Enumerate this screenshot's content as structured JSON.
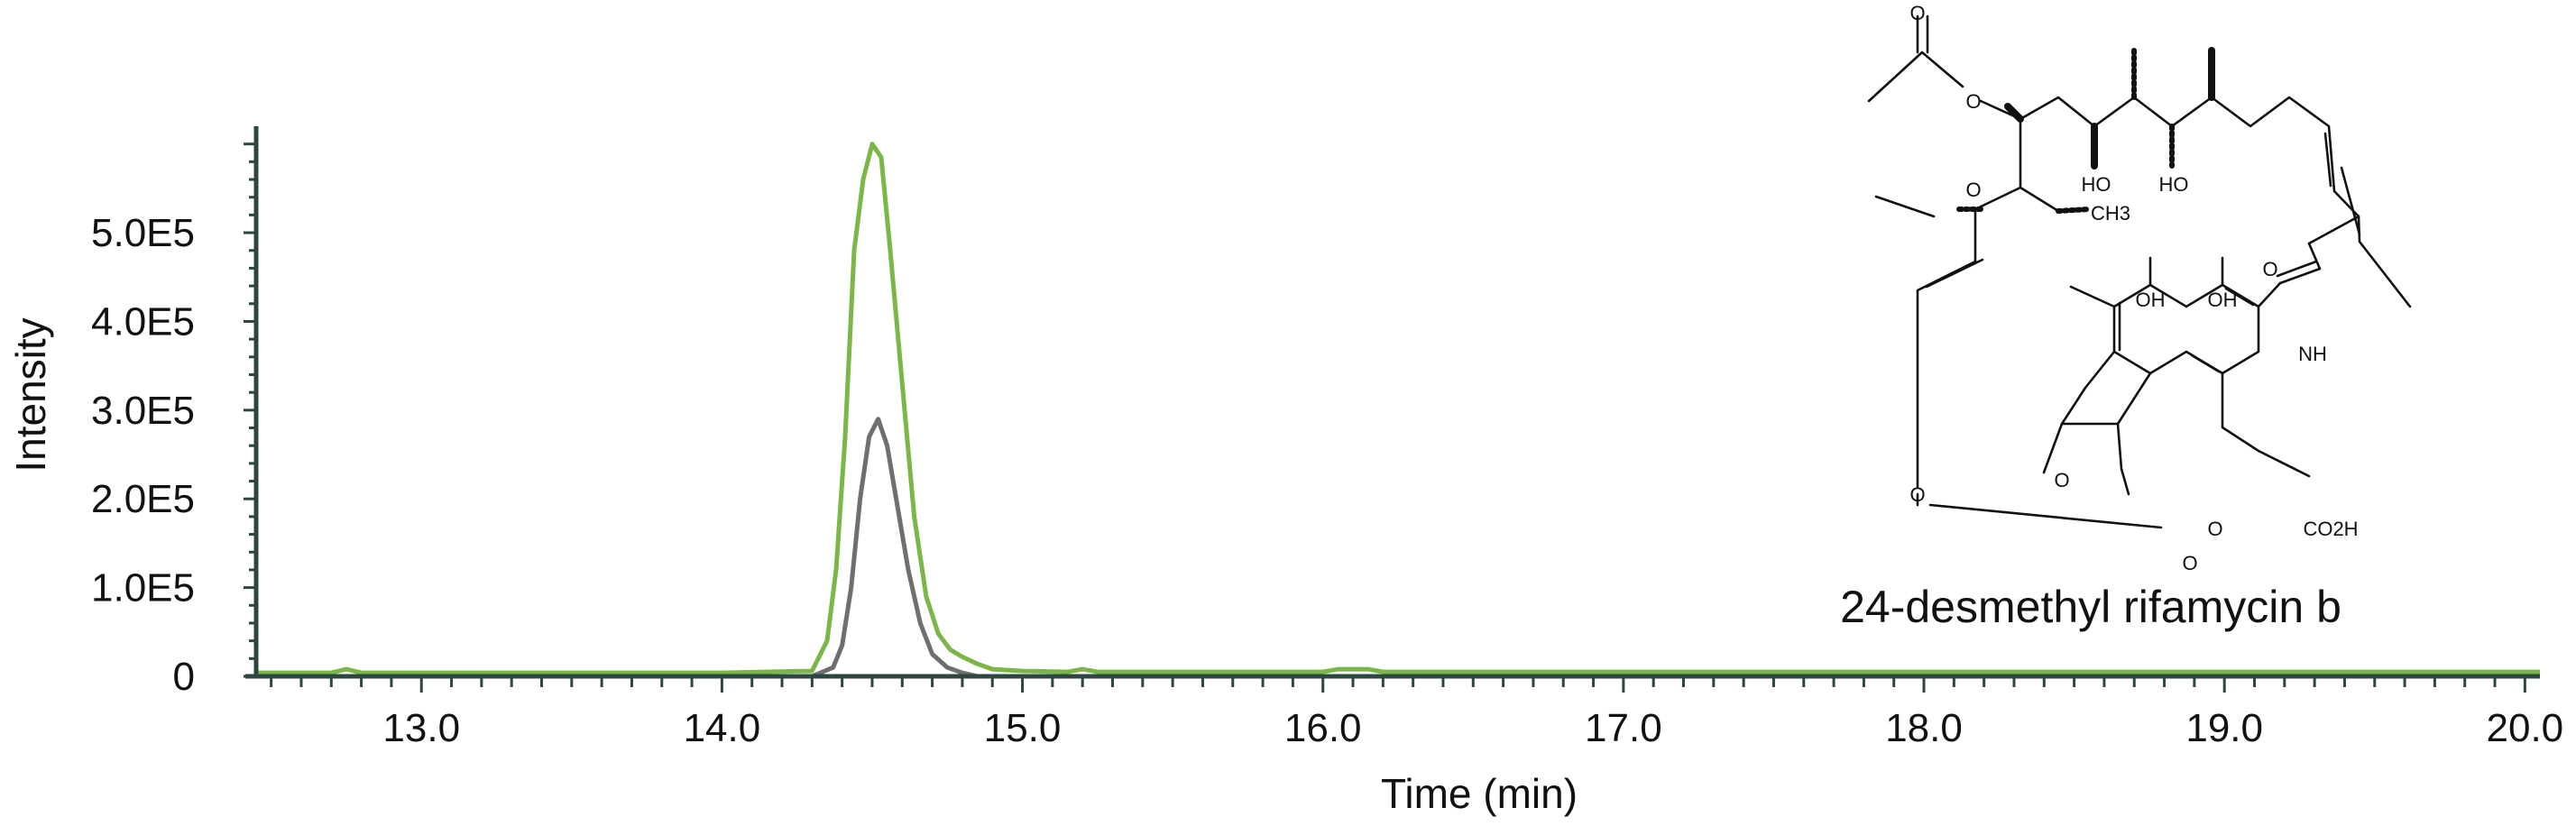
{
  "chart_data": {
    "type": "line",
    "xlabel": "Time (min)",
    "ylabel": "Intensity",
    "xlim": [
      12.45,
      20.05
    ],
    "ylim": [
      0,
      620000
    ],
    "x_ticks": [
      13.0,
      14.0,
      15.0,
      16.0,
      17.0,
      18.0,
      19.0,
      20.0
    ],
    "x_tick_labels": [
      "13.0",
      "14.0",
      "15.0",
      "16.0",
      "17.0",
      "18.0",
      "19.0",
      "20.0"
    ],
    "y_ticks": [
      0,
      100000,
      200000,
      300000,
      400000,
      500000
    ],
    "y_tick_labels": [
      "0",
      "1.0E5",
      "2.0E5",
      "3.0E5",
      "4.0E5",
      "5.0E5"
    ],
    "grid": false,
    "legend": "none",
    "series": [
      {
        "color": "#7ab648",
        "x": [
          12.45,
          12.7,
          12.75,
          12.8,
          14.0,
          14.3,
          14.35,
          14.38,
          14.41,
          14.44,
          14.47,
          14.5,
          14.53,
          14.56,
          14.6,
          14.64,
          14.68,
          14.72,
          14.76,
          14.8,
          14.85,
          14.9,
          15.0,
          15.15,
          15.2,
          15.25,
          16.0,
          16.05,
          16.1,
          16.15,
          16.2,
          20.05
        ],
        "y": [
          4000,
          4000,
          8000,
          4000,
          4000,
          6000,
          40000,
          120000,
          270000,
          480000,
          560000,
          600000,
          585000,
          480000,
          330000,
          180000,
          90000,
          48000,
          30000,
          22000,
          14000,
          8000,
          6000,
          5000,
          8000,
          5000,
          5000,
          8000,
          8000,
          8000,
          5000,
          5000
        ]
      },
      {
        "color": "#6f6f6f",
        "x": [
          12.45,
          14.3,
          14.37,
          14.4,
          14.43,
          14.46,
          14.49,
          14.52,
          14.55,
          14.58,
          14.62,
          14.66,
          14.7,
          14.75,
          14.8,
          14.85,
          20.05
        ],
        "y": [
          0,
          0,
          10000,
          35000,
          100000,
          200000,
          270000,
          290000,
          260000,
          200000,
          120000,
          60000,
          25000,
          10000,
          4000,
          0,
          0
        ]
      }
    ]
  },
  "structure": {
    "compound_name": "24-desmethyl rifamycin b",
    "atom_labels": [
      "O",
      "O",
      "O",
      "HO",
      "HO",
      "CH3",
      "O",
      "OH",
      "OH",
      "NH",
      "O",
      "O",
      "O",
      "O",
      "CO2H"
    ]
  }
}
